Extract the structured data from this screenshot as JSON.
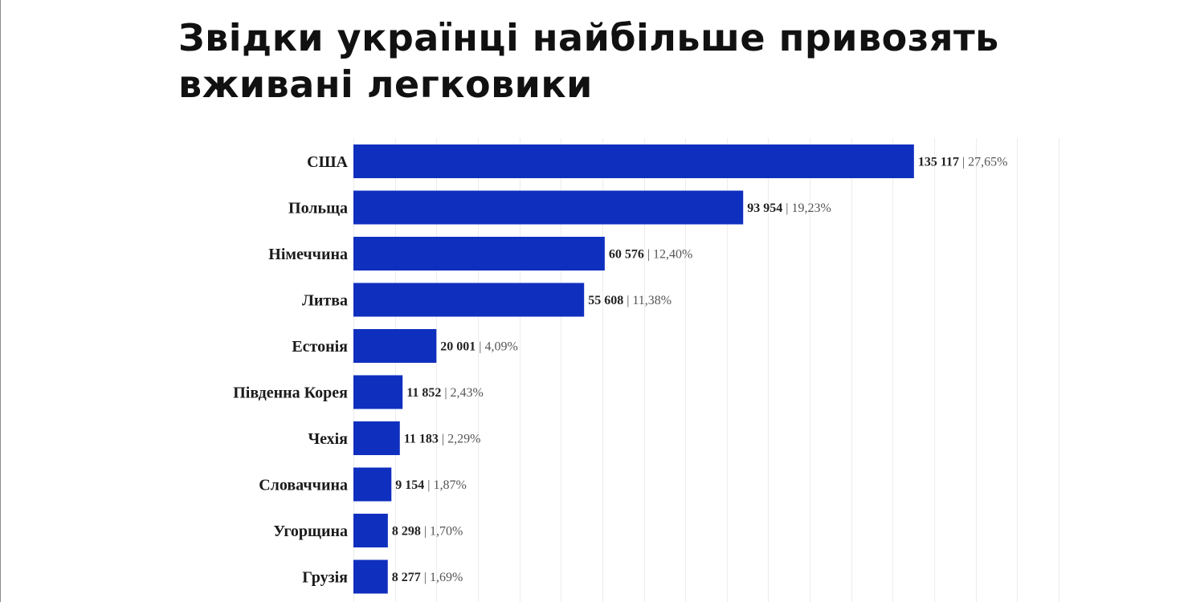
{
  "title": "Звідки українці найбільше привозять вживані легковики",
  "chart_data": {
    "type": "bar",
    "orientation": "horizontal",
    "categories": [
      "США",
      "Польща",
      "Німеччина",
      "Литва",
      "Естонія",
      "Південна Корея",
      "Чехія",
      "Словаччина",
      "Угорщина",
      "Грузія"
    ],
    "values": [
      135117,
      93954,
      60576,
      55608,
      20001,
      11852,
      11183,
      9154,
      8298,
      8277
    ],
    "value_labels": [
      "135 117",
      "93 954",
      "60 576",
      "55 608",
      "20 001",
      "11 852",
      "11 183",
      "9 154",
      "8 298",
      "8 277"
    ],
    "percent_labels": [
      "27,65%",
      "19,23%",
      "12,40%",
      "11,38%",
      "4,09%",
      "2,43%",
      "2,29%",
      "1,87%",
      "1,70%",
      "1,69%"
    ],
    "separator": "|",
    "xlim": [
      0,
      170000
    ],
    "grid": true,
    "legend": "none",
    "bar_color": "#0f2fbf"
  }
}
